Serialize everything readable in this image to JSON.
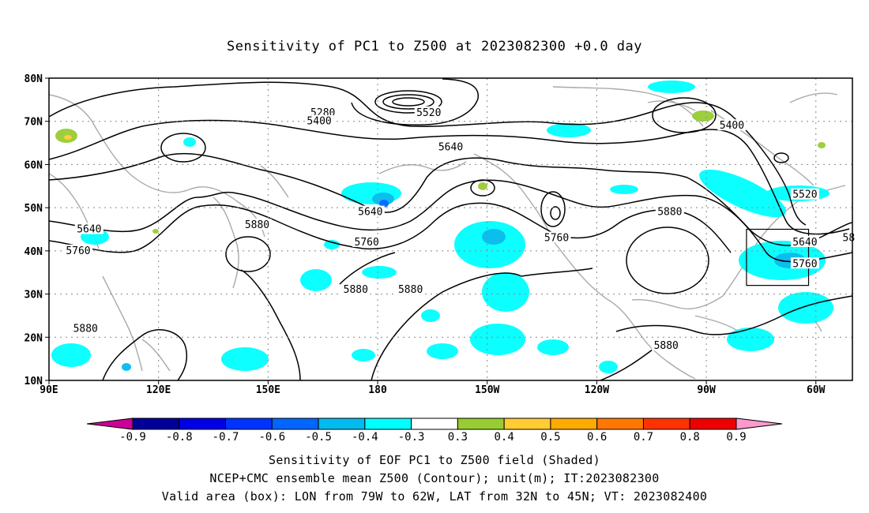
{
  "title": "Sensitivity of PC1 to Z500 at 2023082300 +0.0 day",
  "map": {
    "lat_labels": [
      "80N",
      "70N",
      "60N",
      "50N",
      "40N",
      "30N",
      "20N",
      "10N"
    ],
    "lon_labels": [
      "90E",
      "120E",
      "150E",
      "180",
      "150W",
      "120W",
      "90W",
      "60W"
    ],
    "extent": {
      "lon_west": 90,
      "lon_east": 310,
      "lat_south": 10,
      "lat_north": 80
    },
    "contour_labels": [
      {
        "text": "5280",
        "lon": 165,
        "lat": 72
      },
      {
        "text": "5400",
        "lon": 164,
        "lat": 70
      },
      {
        "text": "5520",
        "lon": 194,
        "lat": 72
      },
      {
        "text": "5640",
        "lon": 200,
        "lat": 64
      },
      {
        "text": "5400",
        "lon": 277,
        "lat": 69
      },
      {
        "text": "5520",
        "lon": 297,
        "lat": 53
      },
      {
        "text": "5640",
        "lon": 101,
        "lat": 45
      },
      {
        "text": "5760",
        "lon": 98,
        "lat": 40
      },
      {
        "text": "5880",
        "lon": 147,
        "lat": 46
      },
      {
        "text": "5640",
        "lon": 178,
        "lat": 49
      },
      {
        "text": "5760",
        "lon": 177,
        "lat": 42
      },
      {
        "text": "5880",
        "lon": 174,
        "lat": 31
      },
      {
        "text": "5880",
        "lon": 189,
        "lat": 31
      },
      {
        "text": "5880",
        "lon": 100,
        "lat": 22
      },
      {
        "text": "5760",
        "lon": 229,
        "lat": 43
      },
      {
        "text": "5880",
        "lon": 260,
        "lat": 49
      },
      {
        "text": "5640",
        "lon": 297,
        "lat": 42
      },
      {
        "text": "5760",
        "lon": 297,
        "lat": 37
      },
      {
        "text": "5880",
        "lon": 259,
        "lat": 18
      },
      {
        "text": "58",
        "lon": 309,
        "lat": 43
      }
    ],
    "valid_box": {
      "lon_west": -79,
      "lon_east": -62,
      "lat_south": 32,
      "lat_north": 45
    }
  },
  "colorbar": {
    "labels": [
      "-0.9",
      "-0.8",
      "-0.7",
      "-0.6",
      "-0.5",
      "-0.4",
      "-0.3",
      "0.3",
      "0.4",
      "0.5",
      "0.6",
      "0.7",
      "0.8",
      "0.9"
    ],
    "colors": [
      "#000099",
      "#0000e6",
      "#0033ff",
      "#0066ff",
      "#00bbee",
      "#00ffff",
      "#ffffff",
      "#99cc33",
      "#ffcc33",
      "#ffaa00",
      "#ff7700",
      "#ff3300",
      "#ee0000"
    ],
    "low_arrow_color": "#cc0099",
    "high_arrow_color": "#ff99cc"
  },
  "captions": {
    "line1": "Sensitivity of EOF PC1 to Z500 field (Shaded)",
    "line2": "NCEP+CMC ensemble mean Z500 (Contour); unit(m); IT:2023082300",
    "line3": "Valid area (box): LON from 79W to 62W, LAT from 32N to 45N; VT: 2023082400"
  }
}
